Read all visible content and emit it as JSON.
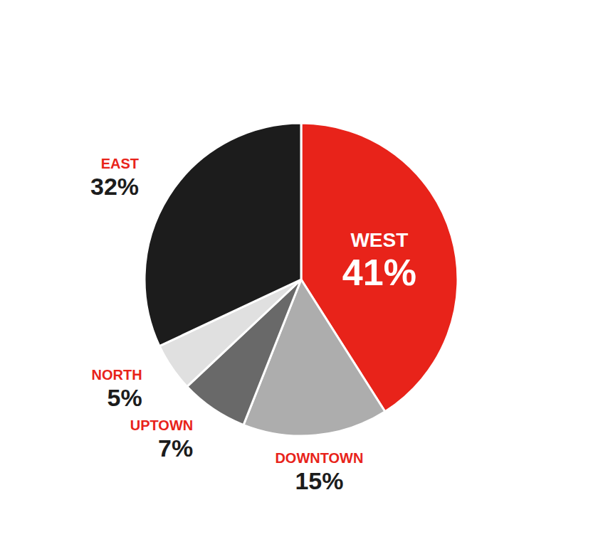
{
  "chart_data": {
    "type": "pie",
    "categories": [
      "WEST",
      "DOWNTOWN",
      "UPTOWN",
      "NORTH",
      "EAST"
    ],
    "values": [
      41,
      15,
      7,
      5,
      32
    ],
    "value_labels": [
      "41%",
      "15%",
      "7%",
      "5%",
      "32%"
    ],
    "colors": [
      "#E8231A",
      "#ADADAD",
      "#696969",
      "#E0E0E0",
      "#1C1C1C"
    ],
    "data_labels": true
  }
}
